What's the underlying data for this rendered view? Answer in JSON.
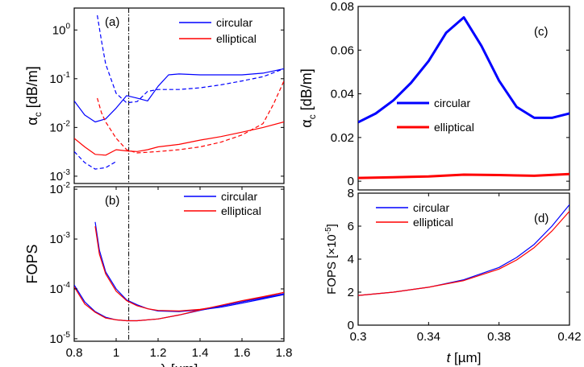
{
  "chart_data": [
    {
      "id": "a",
      "type": "line",
      "panel_label": "(a)",
      "ylabel_symbol": "α",
      "ylabel_sub": "c",
      "ylabel_unit": " [dB/m]",
      "xlim": [
        0.8,
        1.8
      ],
      "ylim_log10": [
        -3.15,
        0.45
      ],
      "y_scale": "log",
      "ytick_labels": [
        {
          "base": "10",
          "exp": "0",
          "value": 1
        },
        {
          "base": "10",
          "exp": "-1",
          "value": 0.1
        },
        {
          "base": "10",
          "exp": "-2",
          "value": 0.01
        },
        {
          "base": "10",
          "exp": "-3",
          "value": 0.001
        }
      ],
      "vline_x": 1.06,
      "legend": [
        {
          "label": "circular",
          "color": "#0000ff"
        },
        {
          "label": "elliptical",
          "color": "#ff0000"
        }
      ],
      "series": [
        {
          "legend_index": 0,
          "color": "#0000ff",
          "style": "solid",
          "x": [
            0.8,
            0.85,
            0.9,
            0.95,
            1.0,
            1.05,
            1.1,
            1.15,
            1.2,
            1.25,
            1.3,
            1.4,
            1.5,
            1.6,
            1.7,
            1.8
          ],
          "y": [
            0.035,
            0.018,
            0.013,
            0.015,
            0.025,
            0.045,
            0.04,
            0.035,
            0.07,
            0.12,
            0.125,
            0.12,
            0.12,
            0.12,
            0.13,
            0.16
          ]
        },
        {
          "legend_index": 0,
          "color": "#0000ff",
          "style": "dashed",
          "x": [
            0.91,
            0.93,
            0.95,
            1.0,
            1.05,
            1.1,
            1.15,
            1.2,
            1.3,
            1.4,
            1.5,
            1.6,
            1.7,
            1.8
          ],
          "y": [
            2.0,
            0.6,
            0.2,
            0.05,
            0.032,
            0.034,
            0.055,
            0.06,
            0.06,
            0.065,
            0.075,
            0.09,
            0.11,
            0.16
          ]
        },
        {
          "legend_index": 1,
          "color": "#ff0000",
          "style": "solid",
          "x": [
            0.8,
            0.85,
            0.9,
            0.95,
            1.0,
            1.05,
            1.1,
            1.15,
            1.2,
            1.3,
            1.4,
            1.5,
            1.6,
            1.7,
            1.8
          ],
          "y": [
            0.006,
            0.004,
            0.0028,
            0.0027,
            0.0035,
            0.0033,
            0.0032,
            0.0035,
            0.004,
            0.0045,
            0.0055,
            0.0065,
            0.008,
            0.01,
            0.013
          ]
        },
        {
          "legend_index": 1,
          "color": "#ff0000",
          "style": "dashed",
          "x": [
            0.91,
            0.93,
            0.95,
            1.0,
            1.05,
            1.1,
            1.2,
            1.3,
            1.4,
            1.5,
            1.6,
            1.7,
            1.75,
            1.8
          ],
          "y": [
            0.04,
            0.02,
            0.013,
            0.006,
            0.0035,
            0.003,
            0.0032,
            0.0035,
            0.004,
            0.005,
            0.007,
            0.012,
            0.03,
            0.09
          ]
        },
        {
          "legend_index": 0,
          "color": "#0000ff",
          "style": "dashed",
          "x": [
            0.8,
            0.85,
            0.9,
            0.95,
            1.0
          ],
          "y": [
            0.0032,
            0.0019,
            0.0014,
            0.0015,
            0.002
          ]
        }
      ]
    },
    {
      "id": "b",
      "type": "line",
      "panel_label": "(b)",
      "ylabel": "FOPS",
      "xlabel_symbol": "λ",
      "xlabel_unit": " [µm]",
      "xlim": [
        0.8,
        1.8
      ],
      "ylim_log10": [
        -5.05,
        -1.95
      ],
      "y_scale": "log",
      "xtick_labels": [
        "0.8",
        "1",
        "1.2",
        "1.4",
        "1.6",
        "1.8"
      ],
      "xticks": [
        0.8,
        1.0,
        1.2,
        1.4,
        1.6,
        1.8
      ],
      "ytick_labels": [
        {
          "base": "10",
          "exp": "-2",
          "value": 0.01
        },
        {
          "base": "10",
          "exp": "-3",
          "value": 0.001
        },
        {
          "base": "10",
          "exp": "-4",
          "value": 0.0001
        },
        {
          "base": "10",
          "exp": "-5",
          "value": 1e-05
        }
      ],
      "vline_x": 1.06,
      "legend": [
        {
          "label": "circular",
          "color": "#0000ff"
        },
        {
          "label": "elliptical",
          "color": "#ff0000"
        }
      ],
      "series": [
        {
          "legend_index": 0,
          "color": "#0000ff",
          "style": "solid",
          "x": [
            0.9,
            0.92,
            0.95,
            1.0,
            1.05,
            1.1,
            1.15,
            1.2,
            1.3,
            1.4,
            1.5,
            1.6,
            1.7,
            1.8
          ],
          "y": [
            0.0022,
            0.0006,
            0.00022,
            0.0001,
            6e-05,
            4.8e-05,
            4e-05,
            3.6e-05,
            3.5e-05,
            3.8e-05,
            4.3e-05,
            5.2e-05,
            6.3e-05,
            7.7e-05
          ]
        },
        {
          "legend_index": 1,
          "color": "#ff0000",
          "style": "solid",
          "x": [
            0.9,
            0.92,
            0.95,
            1.0,
            1.05,
            1.1,
            1.15,
            1.2,
            1.3,
            1.4,
            1.5,
            1.6,
            1.7,
            1.8
          ],
          "y": [
            0.0018,
            0.0005,
            0.0002,
            9e-05,
            5.8e-05,
            4.6e-05,
            4e-05,
            3.7e-05,
            3.6e-05,
            3.9e-05,
            4.5e-05,
            5.5e-05,
            6.8e-05,
            8.5e-05
          ]
        },
        {
          "legend_index": 0,
          "color": "#0000ff",
          "style": "solid",
          "x": [
            0.8,
            0.85,
            0.9,
            0.95,
            1.0,
            1.05,
            1.1,
            1.2,
            1.3,
            1.4,
            1.5,
            1.6,
            1.7,
            1.8
          ],
          "y": [
            0.00012,
            5.5e-05,
            3.5e-05,
            2.7e-05,
            2.4e-05,
            2.3e-05,
            2.3e-05,
            2.5e-05,
            3e-05,
            3.7e-05,
            4.5e-05,
            5.5e-05,
            6.6e-05,
            8e-05
          ]
        },
        {
          "legend_index": 1,
          "color": "#ff0000",
          "style": "solid",
          "x": [
            0.8,
            0.85,
            0.9,
            0.95,
            1.0,
            1.05,
            1.1,
            1.2,
            1.3,
            1.4,
            1.5,
            1.6,
            1.7,
            1.8
          ],
          "y": [
            0.00011,
            5e-05,
            3.4e-05,
            2.6e-05,
            2.4e-05,
            2.3e-05,
            2.3e-05,
            2.5e-05,
            3e-05,
            3.8e-05,
            4.7e-05,
            5.8e-05,
            7e-05,
            8.5e-05
          ]
        }
      ]
    },
    {
      "id": "c",
      "type": "line",
      "panel_label": "(c)",
      "ylabel_symbol": "α",
      "ylabel_sub": "c",
      "ylabel_unit": " [dB/m]",
      "xlim": [
        0.3,
        0.42
      ],
      "ylim": [
        -0.004,
        0.08
      ],
      "yticks": [
        0,
        0.02,
        0.04,
        0.06,
        0.08
      ],
      "ytick_labels": [
        "0",
        "0.02",
        "0.04",
        "0.06",
        "0.08"
      ],
      "legend": [
        {
          "label": "circular",
          "color": "#0000ff"
        },
        {
          "label": "elliptical",
          "color": "#ff0000"
        }
      ],
      "series": [
        {
          "legend_index": 0,
          "color": "#0000ff",
          "style": "solid",
          "x": [
            0.3,
            0.31,
            0.32,
            0.33,
            0.34,
            0.35,
            0.36,
            0.37,
            0.38,
            0.39,
            0.4,
            0.41,
            0.42
          ],
          "y": [
            0.027,
            0.031,
            0.037,
            0.045,
            0.055,
            0.068,
            0.075,
            0.062,
            0.046,
            0.034,
            0.029,
            0.029,
            0.031
          ]
        },
        {
          "legend_index": 1,
          "color": "#ff0000",
          "style": "solid",
          "x": [
            0.3,
            0.32,
            0.34,
            0.36,
            0.38,
            0.4,
            0.42
          ],
          "y": [
            0.0015,
            0.0018,
            0.0022,
            0.003,
            0.0028,
            0.0025,
            0.0033
          ]
        }
      ]
    },
    {
      "id": "d",
      "type": "line",
      "panel_label": "(d)",
      "ylabel": "FOPS [×10",
      "ylabel_exp": "-5",
      "ylabel_end": "]",
      "xlabel_symbol": "t",
      "xlabel_unit": " [µm]",
      "xlim": [
        0.3,
        0.42
      ],
      "ylim": [
        0,
        8
      ],
      "xticks": [
        0.3,
        0.34,
        0.38,
        0.42
      ],
      "xtick_labels": [
        "0.3",
        "0.34",
        "0.38",
        "0.42"
      ],
      "yticks": [
        0,
        2,
        4,
        6,
        8
      ],
      "ytick_labels": [
        "0",
        "2",
        "4",
        "6",
        "8"
      ],
      "legend": [
        {
          "label": "circular",
          "color": "#0000ff"
        },
        {
          "label": "elliptical",
          "color": "#ff0000"
        }
      ],
      "series": [
        {
          "legend_index": 0,
          "color": "#0000ff",
          "style": "solid",
          "x": [
            0.3,
            0.32,
            0.34,
            0.36,
            0.38,
            0.39,
            0.4,
            0.41,
            0.42
          ],
          "y": [
            1.8,
            2.0,
            2.3,
            2.75,
            3.5,
            4.1,
            4.9,
            6.0,
            7.3
          ]
        },
        {
          "legend_index": 1,
          "color": "#ff0000",
          "style": "solid",
          "x": [
            0.3,
            0.32,
            0.34,
            0.36,
            0.38,
            0.39,
            0.4,
            0.41,
            0.42
          ],
          "y": [
            1.8,
            2.0,
            2.3,
            2.7,
            3.4,
            3.95,
            4.7,
            5.7,
            6.9
          ]
        }
      ]
    }
  ]
}
